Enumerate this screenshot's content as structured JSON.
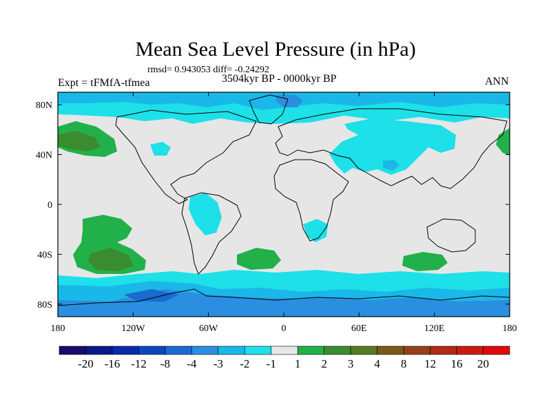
{
  "header": {
    "title": "Mean Sea Level Pressure (in hPa)",
    "stats": "rmsd= 0.943053 diff= -0.24292",
    "period": "3504kyr BP - 0000kyr BP",
    "experiment": "Expt = tFMfA-tfmea",
    "season": "ANN"
  },
  "chart_data": {
    "type": "heatmap",
    "title": "Mean Sea Level Pressure (in hPa)",
    "subtitle": "3504kyr BP - 0000kyr BP",
    "units": "hPa",
    "projection": "cylindrical equidistant",
    "xlim": [
      -180,
      180
    ],
    "ylim": [
      -90,
      90
    ],
    "x_ticks": [
      {
        "value": -180,
        "label": "180"
      },
      {
        "value": -120,
        "label": "120W"
      },
      {
        "value": -60,
        "label": "60W"
      },
      {
        "value": 0,
        "label": "0"
      },
      {
        "value": 60,
        "label": "60E"
      },
      {
        "value": 120,
        "label": "120E"
      },
      {
        "value": 180,
        "label": "180"
      }
    ],
    "y_ticks": [
      {
        "value": 80,
        "label": "80N"
      },
      {
        "value": 40,
        "label": "40N"
      },
      {
        "value": 0,
        "label": "0"
      },
      {
        "value": -40,
        "label": "40S"
      },
      {
        "value": -80,
        "label": "80S"
      }
    ],
    "colorbar": {
      "labels": [
        "-20",
        "-16",
        "-12",
        "-8",
        "-4",
        "-3",
        "-2",
        "-1",
        "1",
        "2",
        "3",
        "4",
        "8",
        "12",
        "16",
        "20"
      ],
      "colors": [
        "#1a0a6e",
        "#0a1a8c",
        "#0a2aa8",
        "#0a46c0",
        "#1a6ad0",
        "#2a8fe0",
        "#1ab8e8",
        "#1ee0e8",
        "#e6e6e6",
        "#22b04a",
        "#3a8c2e",
        "#5a7a22",
        "#7a5a1a",
        "#964018",
        "#b02a14",
        "#c81a0e",
        "#e00a0a"
      ]
    },
    "regions": [
      {
        "level": "-1 to -2",
        "area": "Arctic band",
        "lon": [
          -180,
          180
        ],
        "lat": [
          58,
          80
        ]
      },
      {
        "level": "-2 to -3",
        "area": "Greenland / Arctic",
        "lon": [
          -60,
          20
        ],
        "lat": [
          72,
          88
        ]
      },
      {
        "level": "-1 to -2",
        "area": "Eurasia",
        "lon": [
          40,
          110
        ],
        "lat": [
          20,
          60
        ]
      },
      {
        "level": "-1 to -2",
        "area": "South America",
        "lon": [
          -70,
          -40
        ],
        "lat": [
          -25,
          0
        ]
      },
      {
        "level": "-1 to -2",
        "area": "Southern Africa",
        "lon": [
          20,
          35
        ],
        "lat": [
          -32,
          -15
        ]
      },
      {
        "level": "-1 to -2",
        "area": "Southern Ocean",
        "lon": [
          -180,
          180
        ],
        "lat": [
          -70,
          -55
        ]
      },
      {
        "level": "-2 to -4",
        "area": "Antarctica",
        "lon": [
          -180,
          180
        ],
        "lat": [
          -90,
          -65
        ]
      },
      {
        "level": "1 to 2",
        "area": "North Pacific",
        "lon": [
          -180,
          -140
        ],
        "lat": [
          30,
          62
        ]
      },
      {
        "level": "2 to 3",
        "area": "North Pacific core",
        "lon": [
          -175,
          -150
        ],
        "lat": [
          40,
          55
        ]
      },
      {
        "level": "1 to 2",
        "area": "Far NW Pacific",
        "lon": [
          170,
          180
        ],
        "lat": [
          35,
          55
        ]
      },
      {
        "level": "1 to 2",
        "area": "South Pacific",
        "lon": [
          -160,
          -110
        ],
        "lat": [
          -60,
          -20
        ]
      },
      {
        "level": "2 to 3",
        "area": "South Pacific core",
        "lon": [
          -150,
          -115
        ],
        "lat": [
          -55,
          -40
        ]
      },
      {
        "level": "1 to 2",
        "area": "South Atlantic",
        "lon": [
          -35,
          -5
        ],
        "lat": [
          -50,
          -35
        ]
      },
      {
        "level": "1 to 2",
        "area": "South Indian Ocean",
        "lon": [
          100,
          130
        ],
        "lat": [
          -50,
          -40
        ]
      }
    ]
  }
}
